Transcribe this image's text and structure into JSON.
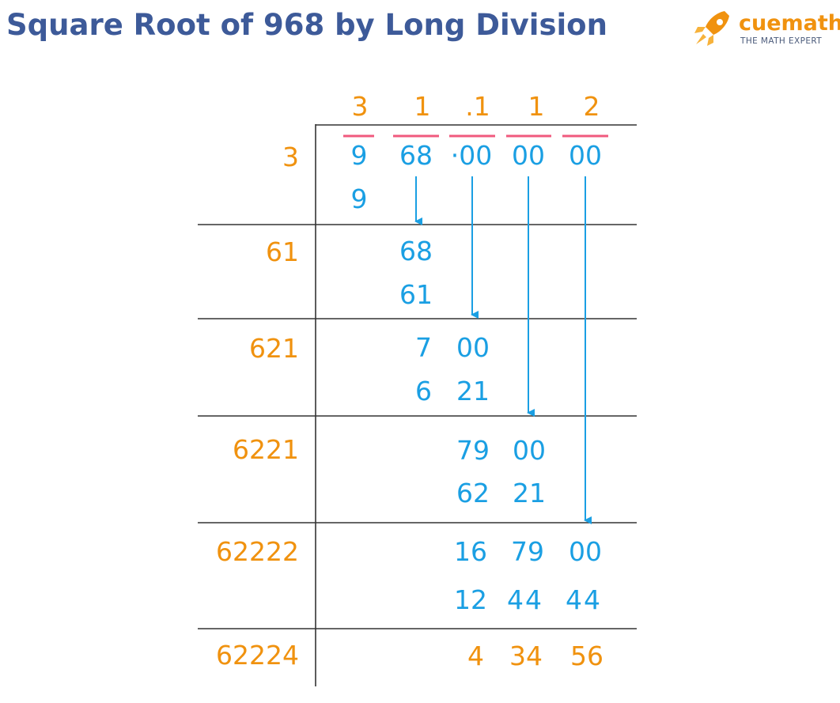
{
  "title": "Square Root of 968 by Long Division",
  "logo": {
    "name": "cuemath",
    "tagline": "THE MATH EXPERT",
    "icon": "rocket-icon"
  },
  "colors": {
    "title": "#3d5a99",
    "quotient": "#f0920f",
    "digits": "#1a9fe3",
    "bars": "#f05a7e",
    "lines": "#333333"
  },
  "quotient_digits": [
    "3",
    "1",
    ".1",
    "1",
    "2"
  ],
  "dividend_groups": [
    "9",
    "68",
    "·00",
    "00",
    "00"
  ],
  "divisors": [
    "3",
    "61",
    "621",
    "6221",
    "62222",
    "62224"
  ],
  "steps": {
    "s1_sub": "9",
    "s2_top": "68",
    "s2_sub": "61",
    "s3_top_a": "7",
    "s3_top_b": "00",
    "s3_sub_a": "6",
    "s3_sub_b": "21",
    "s4_top_a": "79",
    "s4_top_b": "00",
    "s4_sub_a": "62",
    "s4_sub_b": "21",
    "s5_top_a": "16",
    "s5_top_b": "79",
    "s5_top_c": "00",
    "s5_sub_a": "12",
    "s5_sub_b": "44",
    "s5_sub_c": "44",
    "rem_a": "4",
    "rem_b": "34",
    "rem_c": "56"
  }
}
